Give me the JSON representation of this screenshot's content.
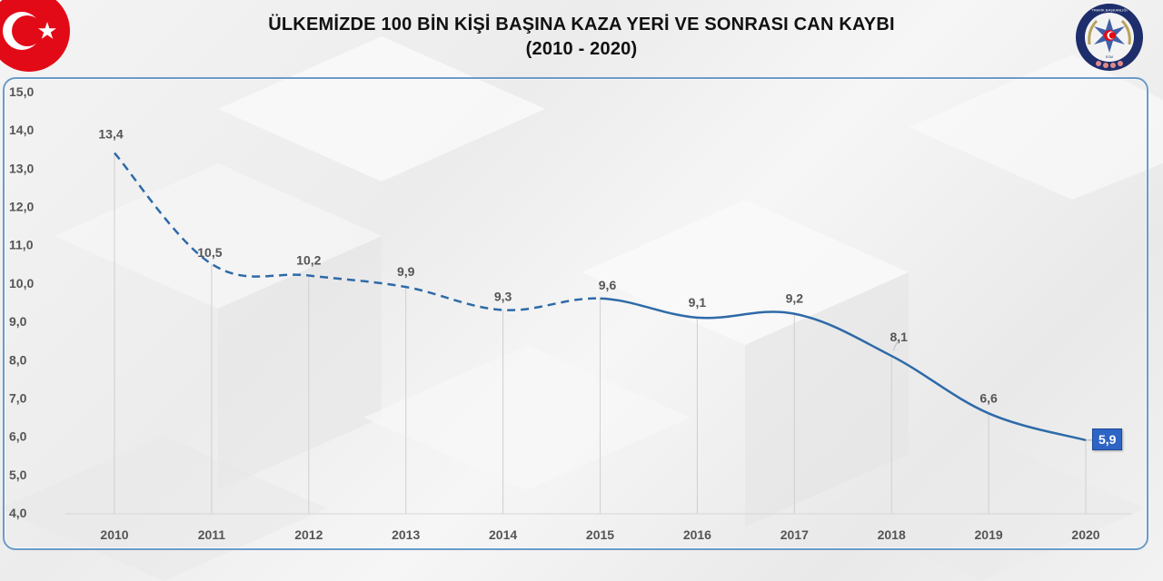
{
  "header": {
    "title_line1": "ÜLKEMİZDE 100 BİN KİŞİ BAŞINA KAZA YERİ VE SONRASI CAN KAYBI",
    "title_line2": "(2010 - 2020)",
    "left_logo": "turkish-flag-icon",
    "right_logo": "police-traffic-emblem-icon",
    "emblem_text_top": "TRAFİK BAŞKANLIĞI",
    "emblem_text_bottom": "EGM"
  },
  "colors": {
    "line": "#2e6aa8",
    "frame": "#6b9bc8",
    "badge": "#2e64c4",
    "flag_red": "#e30a17"
  },
  "chart_data": {
    "type": "line",
    "title": "ÜLKEMİZDE 100 BİN KİŞİ BAŞINA KAZA YERİ VE SONRASI CAN KAYBI (2010 - 2020)",
    "xlabel": "",
    "ylabel": "",
    "categories": [
      "2010",
      "2011",
      "2012",
      "2013",
      "2014",
      "2015",
      "2016",
      "2017",
      "2018",
      "2019",
      "2020"
    ],
    "values": [
      13.4,
      10.5,
      10.2,
      9.9,
      9.3,
      9.6,
      9.1,
      9.2,
      8.1,
      6.6,
      5.9
    ],
    "value_labels": [
      "13,4",
      "10,5",
      "10,2",
      "9,9",
      "9,3",
      "9,6",
      "9,1",
      "9,2",
      "8,1",
      "6,6",
      "5,9"
    ],
    "series_style": {
      "dashed_until": "2015",
      "solid_from": "2015",
      "smooth": true
    },
    "highlighted_point": {
      "category": "2020",
      "label": "5,9"
    },
    "ylim": [
      4.0,
      15.0
    ],
    "yticks": [
      "15,0",
      "14,0",
      "13,0",
      "12,0",
      "11,0",
      "10,0",
      "9,0",
      "8,0",
      "7,0",
      "6,0",
      "5,0",
      "4,0"
    ],
    "grid": {
      "vertical_drop_lines": true,
      "horizontal": false
    },
    "legend": null
  }
}
